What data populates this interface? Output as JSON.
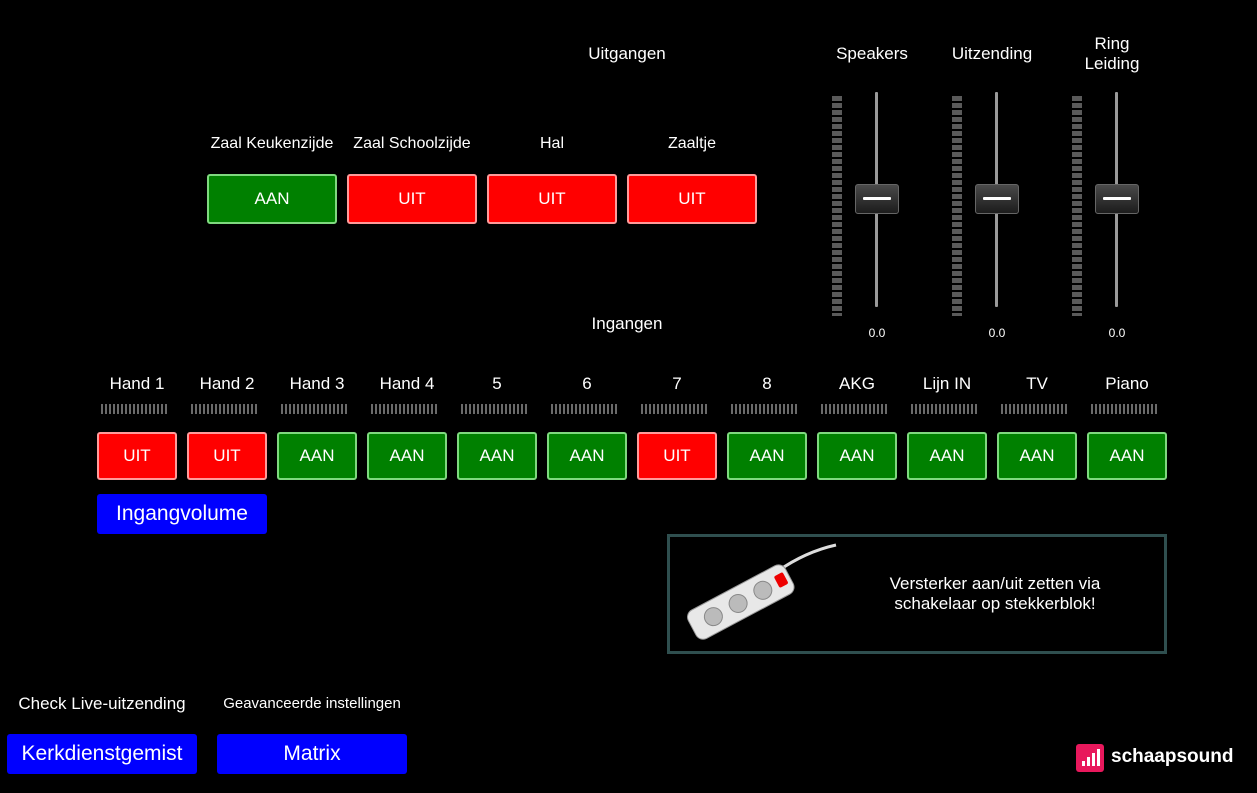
{
  "outputs": {
    "title": "Uitgangen",
    "zones": [
      {
        "name": "Zaal Keukenzijde",
        "state": "AAN"
      },
      {
        "name": "Zaal Schoolzijde",
        "state": "UIT"
      },
      {
        "name": "Hal",
        "state": "UIT"
      },
      {
        "name": "Zaaltje",
        "state": "UIT"
      }
    ]
  },
  "faders": [
    {
      "title": "Speakers",
      "value": "0.0"
    },
    {
      "title": "Uitzending",
      "value": "0.0"
    },
    {
      "title": "Ring\nLeiding",
      "title_line1": "Ring",
      "title_line2": "Leiding",
      "value": "0.0"
    }
  ],
  "inputs": {
    "title": "Ingangen",
    "channels": [
      {
        "name": "Hand 1",
        "state": "UIT"
      },
      {
        "name": "Hand 2",
        "state": "UIT"
      },
      {
        "name": "Hand 3",
        "state": "AAN"
      },
      {
        "name": "Hand 4",
        "state": "AAN"
      },
      {
        "name": "5",
        "state": "AAN"
      },
      {
        "name": "6",
        "state": "AAN"
      },
      {
        "name": "7",
        "state": "UIT"
      },
      {
        "name": "8",
        "state": "AAN"
      },
      {
        "name": "AKG",
        "state": "AAN"
      },
      {
        "name": "Lijn IN",
        "state": "AAN"
      },
      {
        "name": "TV",
        "state": "AAN"
      },
      {
        "name": "Piano",
        "state": "AAN"
      }
    ],
    "volume_button": "Ingangvolume"
  },
  "notice": {
    "line1": "Versterker aan/uit zetten via",
    "line2": "schakelaar op stekkerblok!",
    "image": "power-strip"
  },
  "footer": {
    "live_label": "Check Live-uitzending",
    "live_button": "Kerkdienstgemist",
    "advanced_label": "Geavanceerde instellingen",
    "advanced_button": "Matrix"
  },
  "brand": {
    "name": "schaapsound",
    "accent": "#e8185c"
  },
  "colors": {
    "on": "#008000",
    "off": "#ff0000",
    "action": "#0000ff"
  }
}
